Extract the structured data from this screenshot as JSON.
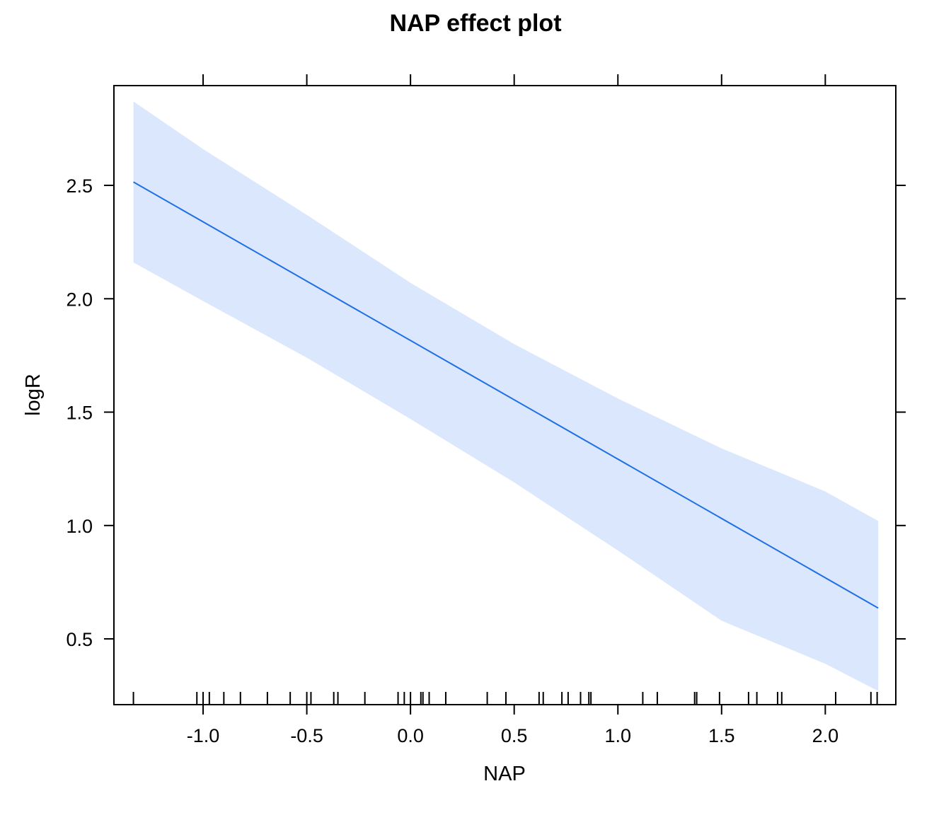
{
  "chart_data": {
    "type": "line",
    "title": "NAP effect plot",
    "xlabel": "NAP",
    "ylabel": "logR",
    "xlim": [
      -1.43,
      2.34
    ],
    "ylim": [
      0.21,
      2.94
    ],
    "x_ticks": [
      -1.0,
      -0.5,
      0.0,
      0.5,
      1.0,
      1.5,
      2.0
    ],
    "x_tick_labels": [
      "-1.0",
      "-0.5",
      "0.0",
      "0.5",
      "1.0",
      "1.5",
      "2.0"
    ],
    "y_ticks": [
      0.5,
      1.0,
      1.5,
      2.0,
      2.5
    ],
    "y_tick_labels": [
      "0.5",
      "1.0",
      "1.5",
      "2.0",
      "2.5"
    ],
    "fit_line": {
      "x": [
        -1.336,
        2.255
      ],
      "y": [
        2.515,
        0.636
      ]
    },
    "confidence_band": {
      "x": [
        -1.336,
        -1.0,
        -0.5,
        0.0,
        0.5,
        1.0,
        1.5,
        2.0,
        2.255
      ],
      "upper": [
        2.87,
        2.66,
        2.37,
        2.07,
        1.8,
        1.56,
        1.34,
        1.15,
        1.02
      ],
      "lower": [
        2.16,
        1.99,
        1.74,
        1.47,
        1.19,
        0.89,
        0.58,
        0.39,
        0.27
      ]
    },
    "rug_x": [
      -1.336,
      -1.03,
      -1.0,
      -0.97,
      -0.9,
      -0.82,
      -0.69,
      -0.58,
      -0.5,
      -0.48,
      -0.37,
      -0.35,
      -0.22,
      -0.06,
      -0.03,
      0.0,
      0.05,
      0.06,
      0.09,
      0.17,
      0.37,
      0.46,
      0.62,
      0.64,
      0.73,
      0.76,
      0.82,
      0.86,
      0.87,
      1.12,
      1.19,
      1.37,
      1.38,
      1.49,
      1.63,
      1.67,
      1.77,
      1.79,
      2.05,
      2.22,
      2.25
    ],
    "grid": false,
    "colors": {
      "line": "#1f6fe6",
      "band": "#dbe7fc",
      "frame": "#000000"
    }
  }
}
